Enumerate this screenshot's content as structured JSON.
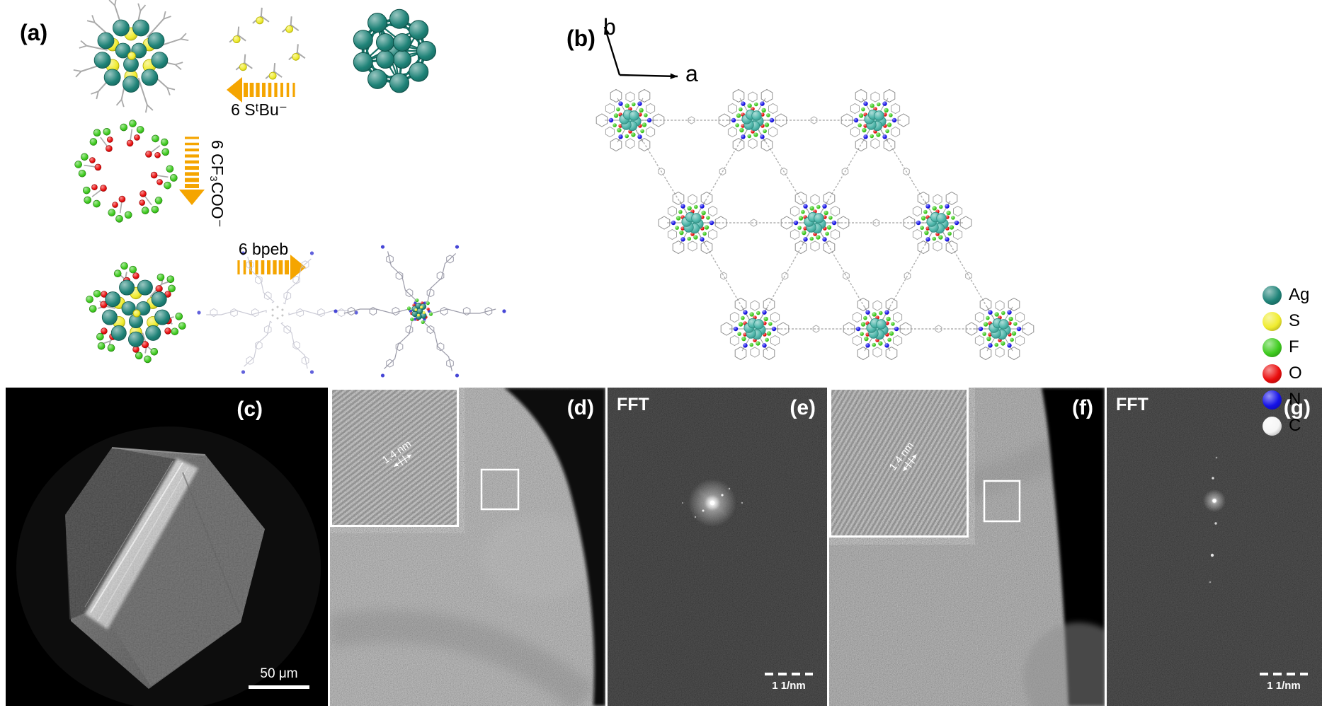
{
  "palette": {
    "ag": "#1f8378",
    "ag_light": "#4db6aa",
    "s": "#f0ec2e",
    "f": "#3ecb1e",
    "o": "#ea0d0d",
    "n": "#1512e8",
    "c": "#f5f5f5",
    "arrow": "#f5a500",
    "linker_gray": "#b0b0b0",
    "stick_gray": "#a9a9a9"
  },
  "panel_a": {
    "label": "(a)",
    "steps": [
      {
        "reagent": "6 SᵗBu⁻"
      },
      {
        "reagent": "6 CF₃COO⁻"
      },
      {
        "reagent": "6 bpeb"
      }
    ]
  },
  "panel_b": {
    "label": "(b)",
    "axis_a_label": "a",
    "axis_b_label": "b",
    "legend": [
      {
        "element": "Ag",
        "color": "#1f8378"
      },
      {
        "element": "S",
        "color": "#f0ec2e"
      },
      {
        "element": "F",
        "color": "#3ecb1e"
      },
      {
        "element": "O",
        "color": "#ea0d0d"
      },
      {
        "element": "N",
        "color": "#1512e8"
      },
      {
        "element": "C",
        "color": "#f5f5f5"
      }
    ]
  },
  "panel_c": {
    "label": "(c)",
    "scale_bar": "50 μm"
  },
  "panel_d": {
    "label": "(d)",
    "lattice_spacing": "1.4 nm"
  },
  "panel_e": {
    "label": "(e)",
    "title": "FFT",
    "scale_bar": "1 1/nm"
  },
  "panel_f": {
    "label": "(f)",
    "lattice_spacing": "1.4 nm"
  },
  "panel_g": {
    "label": "(g)",
    "title": "FFT",
    "scale_bar": "1 1/nm"
  }
}
